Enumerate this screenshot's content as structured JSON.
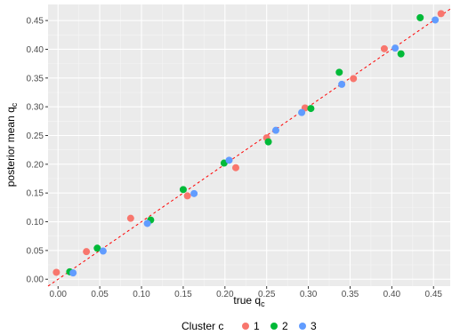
{
  "chart_data": {
    "type": "scatter",
    "title": "",
    "xlabel": "true q",
    "xlabel_sub": "c",
    "ylabel": "posterior mean q",
    "ylabel_sub": "c",
    "xlim": [
      -0.012,
      0.47
    ],
    "ylim": [
      -0.012,
      0.478
    ],
    "x_ticks": [
      0.0,
      0.05,
      0.1,
      0.15,
      0.2,
      0.25,
      0.3,
      0.35,
      0.4,
      0.45
    ],
    "x_tick_labels": [
      "0.00",
      "0.05",
      "0.10",
      "0.15",
      "0.20",
      "0.25",
      "0.30",
      "0.35",
      "0.40",
      "0.45"
    ],
    "y_ticks": [
      0.0,
      0.05,
      0.1,
      0.15,
      0.2,
      0.25,
      0.3,
      0.35,
      0.4,
      0.45
    ],
    "y_tick_labels": [
      "0.00",
      "0.05",
      "0.10",
      "0.15",
      "0.20",
      "0.25",
      "0.30",
      "0.35",
      "0.40",
      "0.45"
    ],
    "grid": true,
    "reference_line": {
      "type": "identity",
      "color": "#ff0000",
      "style": "dashed"
    },
    "legend": {
      "title": "Cluster c",
      "position": "bottom",
      "entries": [
        {
          "label": "1",
          "color": "#F8766D"
        },
        {
          "label": "2",
          "color": "#00BA38"
        },
        {
          "label": "3",
          "color": "#619CFF"
        }
      ]
    },
    "series": [
      {
        "name": "1",
        "color": "#F8766D",
        "points": [
          {
            "x": -0.002,
            "y": 0.012
          },
          {
            "x": 0.034,
            "y": 0.048
          },
          {
            "x": 0.087,
            "y": 0.106
          },
          {
            "x": 0.155,
            "y": 0.145
          },
          {
            "x": 0.213,
            "y": 0.194
          },
          {
            "x": 0.25,
            "y": 0.246
          },
          {
            "x": 0.296,
            "y": 0.298
          },
          {
            "x": 0.354,
            "y": 0.349
          },
          {
            "x": 0.391,
            "y": 0.401
          },
          {
            "x": 0.459,
            "y": 0.462
          }
        ]
      },
      {
        "name": "2",
        "color": "#00BA38",
        "points": [
          {
            "x": 0.014,
            "y": 0.013
          },
          {
            "x": 0.047,
            "y": 0.054
          },
          {
            "x": 0.111,
            "y": 0.103
          },
          {
            "x": 0.15,
            "y": 0.156
          },
          {
            "x": 0.199,
            "y": 0.202
          },
          {
            "x": 0.252,
            "y": 0.239
          },
          {
            "x": 0.303,
            "y": 0.297
          },
          {
            "x": 0.337,
            "y": 0.36
          },
          {
            "x": 0.411,
            "y": 0.392
          },
          {
            "x": 0.434,
            "y": 0.455
          }
        ]
      },
      {
        "name": "3",
        "color": "#619CFF",
        "points": [
          {
            "x": 0.018,
            "y": 0.011
          },
          {
            "x": 0.054,
            "y": 0.049
          },
          {
            "x": 0.107,
            "y": 0.097
          },
          {
            "x": 0.163,
            "y": 0.149
          },
          {
            "x": 0.205,
            "y": 0.207
          },
          {
            "x": 0.261,
            "y": 0.259
          },
          {
            "x": 0.292,
            "y": 0.29
          },
          {
            "x": 0.34,
            "y": 0.339
          },
          {
            "x": 0.404,
            "y": 0.402
          },
          {
            "x": 0.452,
            "y": 0.451
          }
        ]
      }
    ]
  }
}
